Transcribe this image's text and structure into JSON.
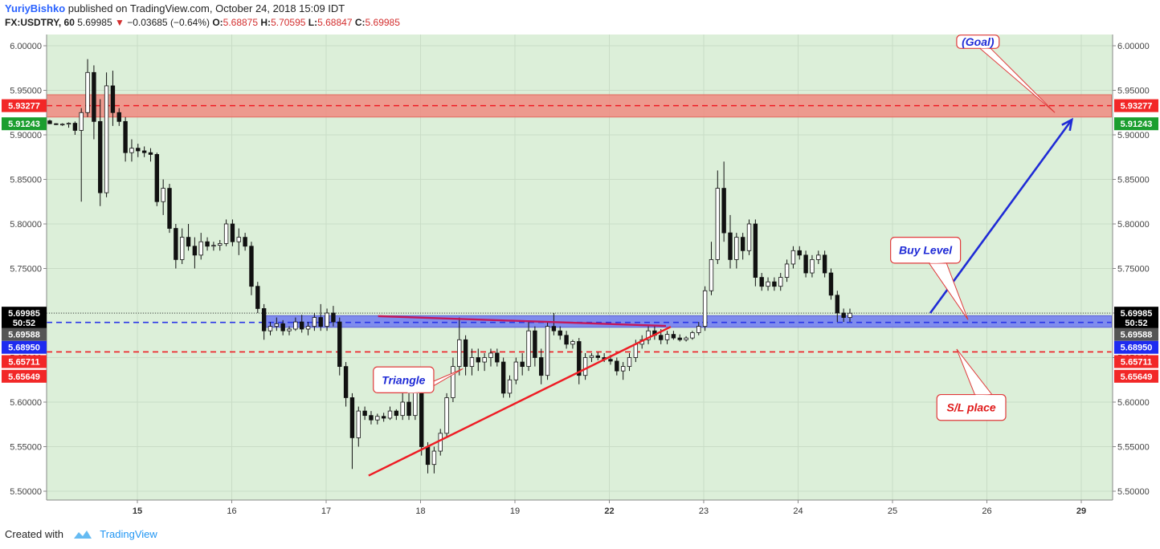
{
  "header": {
    "author": "YuriyBishko",
    "published": "published on TradingView.com, October 24, 2018 15:09 IDT",
    "symbol": "FX:USDTRY, 60",
    "last": "5.69985",
    "change": "−0.03685 (−0.64%)",
    "o_label": "O:",
    "o_value": "5.68875",
    "h_label": "H:",
    "h_value": "5.70595",
    "l_label": "L:",
    "l_value": "5.68847",
    "c_label": "C:",
    "c_value": "5.69985"
  },
  "footer": {
    "created_with": "Created with",
    "brand": "TradingView"
  },
  "colors": {
    "background": "#dcefd9",
    "resistance_zone": "#f08a80",
    "support_zone": "#6f7af0",
    "buy_line": "#2a36e8",
    "stop_line": "#ff1a1a",
    "trend_line": "#ee1c24",
    "arrow": "#1f2bd6"
  },
  "chart_data": {
    "type": "candlestick",
    "y_axis": {
      "min": 5.49,
      "max": 6.01,
      "ticks": [
        "6.00000",
        "5.95000",
        "5.90000",
        "5.85000",
        "5.80000",
        "5.75000",
        "5.70000",
        "5.65000",
        "5.60000",
        "5.55000",
        "5.50000"
      ],
      "tick_values": [
        6.0,
        5.95,
        5.9,
        5.85,
        5.8,
        5.75,
        5.7,
        5.65,
        5.6,
        5.55,
        5.5
      ]
    },
    "x_axis": {
      "ticks": [
        "15",
        "16",
        "17",
        "18",
        "19",
        "22",
        "23",
        "24",
        "25",
        "26",
        "29"
      ],
      "tick_positions": [
        1,
        2,
        3,
        4,
        5,
        6,
        7,
        8,
        9,
        10,
        11
      ]
    },
    "price_tags": [
      {
        "label": "5.93277",
        "value": 5.93277,
        "color": "#f22727",
        "text": "#ffffff"
      },
      {
        "label": "5.91243",
        "value": 5.91243,
        "color": "#1b9e2f",
        "text": "#ffffff"
      },
      {
        "label": "5.69985",
        "value": 5.69985,
        "color": "#000000",
        "text": "#ffffff"
      },
      {
        "label": "50:52",
        "value": 5.689,
        "color": "#000000",
        "text": "#ffffff"
      },
      {
        "label": "5.69588",
        "value": 5.676,
        "color": "#555555",
        "text": "#ffffff"
      },
      {
        "label": "5.68950",
        "value": 5.6615,
        "color": "#1e2bf0",
        "text": "#ffffff"
      },
      {
        "label": "5.65711",
        "value": 5.6455,
        "color": "#f22727",
        "text": "#ffffff"
      },
      {
        "label": "5.65649",
        "value": 5.629,
        "color": "#f22727",
        "text": "#ffffff"
      }
    ],
    "zones": [
      {
        "name": "resistance",
        "top": 5.945,
        "bottom": 5.92,
        "x_start": 0,
        "x_end": 11.32
      },
      {
        "name": "support",
        "top": 5.697,
        "bottom": 5.684,
        "x_start": 2.34,
        "x_end": 11.32
      }
    ],
    "levels": [
      {
        "name": "target",
        "value": 5.93277,
        "style": "dashed",
        "color": "#ee1c24",
        "x_start": 0,
        "x_end": 11.32
      },
      {
        "name": "buy",
        "value": 5.6895,
        "style": "dashed",
        "color": "#2a36e8",
        "x_start": 0,
        "x_end": 11.32
      },
      {
        "name": "stop",
        "value": 5.6564,
        "style": "dashed",
        "color": "#ee1c24",
        "x_start": 0,
        "x_end": 11.32
      },
      {
        "name": "last",
        "value": 5.69985,
        "style": "dotted",
        "color": "#444444",
        "x_start": 0,
        "x_end": 11.32
      }
    ],
    "trend_lines": [
      {
        "name": "triangle-lower",
        "x1": 3.45,
        "y1": 5.5175,
        "x2": 6.65,
        "y2": 5.6845,
        "color": "#ee1c24"
      },
      {
        "name": "triangle-upper",
        "x1": 3.55,
        "y1": 5.6965,
        "x2": 6.6,
        "y2": 5.6855,
        "color": "#c2185b"
      }
    ],
    "arrow": {
      "x1": 9.4,
      "y1": 5.7,
      "x2": 10.9,
      "y2": 5.917
    },
    "callouts": [
      {
        "name": "goal",
        "text": "(Goal)",
        "x": 9.68,
        "y": 6.012,
        "w": 0.45,
        "h": 0.015,
        "tail_x": 10.72,
        "tail_y": 5.925
      },
      {
        "name": "buy-level",
        "text": "Buy Level",
        "x": 8.98,
        "y": 5.785,
        "w": 0.74,
        "h": 0.029,
        "tail_x": 9.8,
        "tail_y": 5.6925
      },
      {
        "name": "triangle",
        "text": "Triangle",
        "x": 3.5,
        "y": 5.6395,
        "w": 0.64,
        "h": 0.029,
        "tail_x": 4.45,
        "tail_y": 5.6375
      },
      {
        "name": "sl-place",
        "text": "S/L place",
        "x": 9.47,
        "y": 5.6085,
        "w": 0.73,
        "h": 0.029,
        "tail_x": 9.68,
        "tail_y": 5.6595
      }
    ],
    "candles": [
      [
        5.9157,
        5.917,
        5.912,
        5.9125
      ],
      [
        5.9125,
        5.913,
        5.911,
        5.9115
      ],
      [
        5.9115,
        5.913,
        5.91,
        5.912
      ],
      [
        5.912,
        5.914,
        5.908,
        5.913
      ],
      [
        5.913,
        5.915,
        5.9,
        5.905
      ],
      [
        5.905,
        5.93,
        5.825,
        5.925
      ],
      [
        5.925,
        5.985,
        5.92,
        5.97
      ],
      [
        5.97,
        5.978,
        5.895,
        5.915
      ],
      [
        5.915,
        5.94,
        5.82,
        5.835
      ],
      [
        5.835,
        5.97,
        5.83,
        5.955
      ],
      [
        5.955,
        5.972,
        5.91,
        5.925
      ],
      [
        5.925,
        5.93,
        5.91,
        5.915
      ],
      [
        5.915,
        5.92,
        5.87,
        5.88
      ],
      [
        5.88,
        5.895,
        5.87,
        5.885
      ],
      [
        5.885,
        5.89,
        5.875,
        5.882
      ],
      [
        5.882,
        5.887,
        5.875,
        5.88
      ],
      [
        5.88,
        5.885,
        5.87,
        5.878
      ],
      [
        5.878,
        5.88,
        5.82,
        5.825
      ],
      [
        5.825,
        5.85,
        5.81,
        5.84
      ],
      [
        5.84,
        5.845,
        5.79,
        5.795
      ],
      [
        5.795,
        5.8,
        5.75,
        5.76
      ],
      [
        5.76,
        5.795,
        5.755,
        5.785
      ],
      [
        5.785,
        5.8,
        5.77,
        5.775
      ],
      [
        5.775,
        5.785,
        5.75,
        5.765
      ],
      [
        5.765,
        5.79,
        5.76,
        5.78
      ],
      [
        5.78,
        5.785,
        5.77,
        5.775
      ],
      [
        5.775,
        5.78,
        5.77,
        5.776
      ],
      [
        5.776,
        5.782,
        5.77,
        5.778
      ],
      [
        5.778,
        5.805,
        5.775,
        5.8
      ],
      [
        5.8,
        5.805,
        5.775,
        5.78
      ],
      [
        5.78,
        5.795,
        5.765,
        5.785
      ],
      [
        5.785,
        5.79,
        5.77,
        5.775
      ],
      [
        5.775,
        5.78,
        5.72,
        5.73
      ],
      [
        5.73,
        5.735,
        5.7,
        5.705
      ],
      [
        5.705,
        5.71,
        5.67,
        5.68
      ],
      [
        5.68,
        5.69,
        5.675,
        5.685
      ],
      [
        5.685,
        5.695,
        5.68,
        5.688
      ],
      [
        5.688,
        5.692,
        5.675,
        5.68
      ],
      [
        5.68,
        5.685,
        5.675,
        5.682
      ],
      [
        5.682,
        5.695,
        5.68,
        5.69
      ],
      [
        5.69,
        5.698,
        5.678,
        5.682
      ],
      [
        5.682,
        5.69,
        5.675,
        5.685
      ],
      [
        5.685,
        5.7,
        5.68,
        5.695
      ],
      [
        5.695,
        5.71,
        5.68,
        5.685
      ],
      [
        5.685,
        5.705,
        5.68,
        5.7
      ],
      [
        5.7,
        5.708,
        5.685,
        5.69
      ],
      [
        5.69,
        5.695,
        5.63,
        5.64
      ],
      [
        5.64,
        5.645,
        5.595,
        5.605
      ],
      [
        5.605,
        5.61,
        5.525,
        5.56
      ],
      [
        5.56,
        5.595,
        5.55,
        5.59
      ],
      [
        5.59,
        5.595,
        5.58,
        5.585
      ],
      [
        5.585,
        5.59,
        5.575,
        5.58
      ],
      [
        5.58,
        5.587,
        5.575,
        5.584
      ],
      [
        5.584,
        5.588,
        5.578,
        5.582
      ],
      [
        5.582,
        5.595,
        5.58,
        5.59
      ],
      [
        5.59,
        5.592,
        5.58,
        5.585
      ],
      [
        5.585,
        5.61,
        5.58,
        5.6
      ],
      [
        5.6,
        5.615,
        5.58,
        5.585
      ],
      [
        5.585,
        5.62,
        5.58,
        5.615
      ],
      [
        5.615,
        5.62,
        5.54,
        5.55
      ],
      [
        5.55,
        5.555,
        5.52,
        5.53
      ],
      [
        5.53,
        5.55,
        5.52,
        5.545
      ],
      [
        5.545,
        5.57,
        5.54,
        5.565
      ],
      [
        5.565,
        5.61,
        5.56,
        5.605
      ],
      [
        5.605,
        5.65,
        5.6,
        5.64
      ],
      [
        5.64,
        5.695,
        5.63,
        5.67
      ],
      [
        5.67,
        5.675,
        5.63,
        5.64
      ],
      [
        5.64,
        5.66,
        5.63,
        5.65
      ],
      [
        5.65,
        5.66,
        5.635,
        5.645
      ],
      [
        5.645,
        5.655,
        5.635,
        5.65
      ],
      [
        5.65,
        5.66,
        5.64,
        5.655
      ],
      [
        5.655,
        5.66,
        5.64,
        5.645
      ],
      [
        5.645,
        5.65,
        5.605,
        5.61
      ],
      [
        5.61,
        5.63,
        5.605,
        5.625
      ],
      [
        5.625,
        5.65,
        5.62,
        5.645
      ],
      [
        5.645,
        5.655,
        5.63,
        5.64
      ],
      [
        5.64,
        5.69,
        5.635,
        5.68
      ],
      [
        5.68,
        5.685,
        5.64,
        5.65
      ],
      [
        5.65,
        5.66,
        5.62,
        5.63
      ],
      [
        5.63,
        5.69,
        5.625,
        5.685
      ],
      [
        5.685,
        5.7,
        5.675,
        5.68
      ],
      [
        5.68,
        5.685,
        5.67,
        5.675
      ],
      [
        5.675,
        5.68,
        5.66,
        5.665
      ],
      [
        5.665,
        5.67,
        5.66,
        5.668
      ],
      [
        5.668,
        5.672,
        5.62,
        5.63
      ],
      [
        5.63,
        5.655,
        5.625,
        5.65
      ],
      [
        5.65,
        5.655,
        5.645,
        5.652
      ],
      [
        5.652,
        5.656,
        5.647,
        5.65
      ],
      [
        5.65,
        5.655,
        5.645,
        5.648
      ],
      [
        5.648,
        5.653,
        5.642,
        5.646
      ],
      [
        5.646,
        5.65,
        5.63,
        5.635
      ],
      [
        5.635,
        5.645,
        5.625,
        5.64
      ],
      [
        5.64,
        5.655,
        5.635,
        5.65
      ],
      [
        5.65,
        5.67,
        5.645,
        5.665
      ],
      [
        5.665,
        5.675,
        5.66,
        5.67
      ],
      [
        5.67,
        5.685,
        5.665,
        5.68
      ],
      [
        5.68,
        5.685,
        5.67,
        5.675
      ],
      [
        5.675,
        5.682,
        5.665,
        5.67
      ],
      [
        5.67,
        5.68,
        5.665,
        5.676
      ],
      [
        5.676,
        5.68,
        5.67,
        5.672
      ],
      [
        5.672,
        5.676,
        5.668,
        5.67
      ],
      [
        5.67,
        5.674,
        5.668,
        5.672
      ],
      [
        5.672,
        5.68,
        5.67,
        5.678
      ],
      [
        5.678,
        5.69,
        5.675,
        5.685
      ],
      [
        5.685,
        5.73,
        5.68,
        5.725
      ],
      [
        5.725,
        5.78,
        5.72,
        5.76
      ],
      [
        5.76,
        5.86,
        5.755,
        5.84
      ],
      [
        5.84,
        5.87,
        5.78,
        5.79
      ],
      [
        5.79,
        5.81,
        5.75,
        5.76
      ],
      [
        5.76,
        5.79,
        5.75,
        5.785
      ],
      [
        5.785,
        5.79,
        5.76,
        5.77
      ],
      [
        5.77,
        5.805,
        5.765,
        5.8
      ],
      [
        5.8,
        5.805,
        5.73,
        5.74
      ],
      [
        5.74,
        5.745,
        5.725,
        5.73
      ],
      [
        5.73,
        5.74,
        5.725,
        5.735
      ],
      [
        5.735,
        5.74,
        5.725,
        5.73
      ],
      [
        5.73,
        5.745,
        5.725,
        5.74
      ],
      [
        5.74,
        5.76,
        5.735,
        5.755
      ],
      [
        5.755,
        5.775,
        5.75,
        5.77
      ],
      [
        5.77,
        5.775,
        5.76,
        5.765
      ],
      [
        5.765,
        5.77,
        5.74,
        5.745
      ],
      [
        5.745,
        5.765,
        5.74,
        5.76
      ],
      [
        5.76,
        5.77,
        5.755,
        5.765
      ],
      [
        5.765,
        5.77,
        5.74,
        5.745
      ],
      [
        5.745,
        5.75,
        5.715,
        5.72
      ],
      [
        5.72,
        5.725,
        5.69,
        5.7
      ],
      [
        5.7,
        5.705,
        5.69,
        5.695
      ],
      [
        5.695,
        5.705,
        5.69,
        5.6998
      ]
    ]
  }
}
